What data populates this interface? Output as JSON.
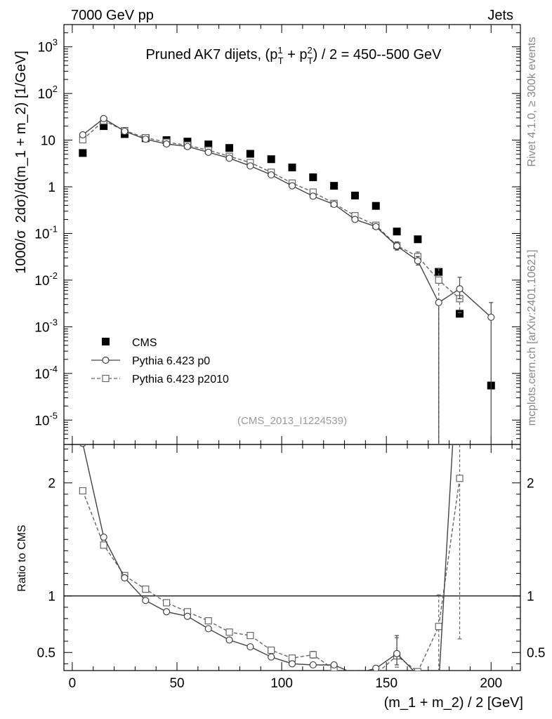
{
  "header": {
    "left": "7000 GeV pp",
    "right": "Jets"
  },
  "side_labels": {
    "rivet": "Rivet 4.1.0, ≥ 300k events",
    "mcplots": "mcplots.cern.ch [arXiv:2401.10621]"
  },
  "chart_data": [
    {
      "type": "scatter",
      "title": "Pruned AK7 dijets, (p_T^1 + p_T^2) / 2 = 450--500 GeV",
      "title_parts": {
        "prefix": "Pruned AK7 dijets, (p",
        "sup1": "1",
        "sub1": "T",
        "mid": " + p",
        "sup2": "2",
        "sub2": "T",
        "suffix": ") / 2 = 450--500 GeV"
      },
      "ylabel": "1000/σ  2dσ)/d(m_1 + m_2) [1/GeV]",
      "ylabel_parts": {
        "a": "1000/σ",
        "b": "2dσ)/d(m_1 + m_2) [1/GeV]"
      },
      "yscale": "log",
      "xlim": [
        -4,
        214
      ],
      "ylim": [
        3e-06,
        3000
      ],
      "ytick_labels": [
        {
          "exp": "-5"
        },
        {
          "exp": "-4"
        },
        {
          "exp": "-3"
        },
        {
          "exp": "-2"
        },
        {
          "exp": "-1"
        },
        {
          "text": "1"
        },
        {
          "text": "10"
        },
        {
          "exp": "2"
        },
        {
          "exp": "3"
        }
      ],
      "ytick_values": [
        1e-05,
        0.0001,
        0.001,
        0.01,
        0.1,
        1,
        10,
        100,
        1000
      ],
      "watermark": "(CMS_2013_I1224539)",
      "legend": {
        "placement": "bottom-left",
        "entries": [
          "CMS",
          "Pythia 6.423 p0",
          "Pythia 6.423 p2010"
        ]
      },
      "series": [
        {
          "name": "CMS",
          "style": "filled-square",
          "color": "#000000",
          "x": [
            5,
            15,
            25,
            35,
            45,
            55,
            65,
            75,
            85,
            95,
            105,
            115,
            125,
            135,
            145,
            155,
            165,
            175,
            185,
            200
          ],
          "y": [
            5.3,
            20,
            13.5,
            11,
            10,
            9.3,
            8.1,
            6.8,
            5.1,
            3.9,
            2.6,
            1.6,
            1.05,
            0.65,
            0.39,
            0.11,
            0.075,
            0.015,
            0.0019,
            5.5e-05
          ]
        },
        {
          "name": "Pythia 6.423 p0",
          "style": "open-circle-solid",
          "color": "#444444",
          "x": [
            5,
            15,
            25,
            35,
            45,
            55,
            65,
            75,
            85,
            95,
            105,
            115,
            125,
            135,
            145,
            155,
            165,
            175,
            185,
            200
          ],
          "y": [
            13,
            29,
            15.5,
            10.5,
            8.3,
            7.3,
            5.5,
            4.1,
            2.8,
            1.8,
            1.05,
            0.63,
            0.42,
            0.2,
            0.14,
            0.054,
            0.026,
            0.0033,
            0.0065,
            0.0016
          ],
          "err_up": [
            0,
            0,
            0,
            0,
            0,
            0,
            0,
            0,
            0,
            0,
            0,
            0,
            0,
            0,
            0,
            0.012,
            0.006,
            0,
            0.005,
            0.0017
          ],
          "err_down": [
            0,
            0,
            0,
            0,
            0,
            0,
            0,
            0,
            0,
            0,
            0,
            0,
            0,
            0,
            0,
            0.01,
            0.005,
            0.0033,
            0.0025,
            0.0016
          ]
        },
        {
          "name": "Pythia 6.423 p2010",
          "style": "open-square-dashed",
          "color": "#666666",
          "x": [
            5,
            15,
            25,
            35,
            45,
            55,
            65,
            75,
            85,
            95,
            105,
            115,
            125,
            135,
            145,
            155,
            165,
            175,
            185
          ],
          "y": [
            10.2,
            26,
            16,
            11.3,
            9,
            7.8,
            6.1,
            4.5,
            3.3,
            2.05,
            1.2,
            0.77,
            0.44,
            0.24,
            0.15,
            0.055,
            0.032,
            0.01,
            0.004
          ],
          "err_up": [
            0,
            0,
            0,
            0,
            0,
            0,
            0,
            0,
            0,
            0,
            0,
            0,
            0,
            0,
            0,
            0.01,
            0.008,
            0.008,
            0.003
          ],
          "err_down": [
            0,
            0,
            0,
            0,
            0,
            0,
            0,
            0,
            0,
            0,
            0,
            0,
            0,
            0,
            0,
            0.009,
            0.007,
            0.01,
            0.002
          ]
        }
      ]
    },
    {
      "type": "line",
      "ylabel": "Ratio to CMS",
      "xlabel": "(m_1 + m_2) / 2 [GeV]",
      "xlim": [
        -4,
        214
      ],
      "ylim": [
        0.34,
        2.34
      ],
      "xticks": [
        0,
        50,
        100,
        150,
        200
      ],
      "xtick_labels": [
        "0",
        "50",
        "100",
        "150",
        "200"
      ],
      "yticks": [
        0.5,
        1,
        2
      ],
      "ytick_labels": [
        "0.5",
        "1",
        "2"
      ],
      "reference_line": 1,
      "series": [
        {
          "name": "Pythia 6.423 p0",
          "style": "open-circle-solid",
          "color": "#444444",
          "x": [
            5,
            15,
            25,
            35,
            45,
            55,
            65,
            75,
            85,
            95,
            105,
            115,
            125,
            135,
            145,
            155,
            165,
            175,
            185
          ],
          "y": [
            2.35,
            1.52,
            1.16,
            0.96,
            0.86,
            0.82,
            0.71,
            0.61,
            0.55,
            0.46,
            0.4,
            0.39,
            0.39,
            0.31,
            0.36,
            0.49,
            0.3,
            0.22,
            3.4
          ],
          "err_up": [
            0,
            0,
            0,
            0,
            0,
            0,
            0,
            0,
            0.02,
            0.02,
            0,
            0,
            0,
            0,
            0,
            0.16,
            0,
            0,
            0
          ],
          "err_down": [
            0,
            0,
            0,
            0,
            0,
            0,
            0,
            0,
            0.02,
            0.02,
            0,
            0,
            0,
            0,
            0,
            0.1,
            0,
            0,
            0
          ]
        },
        {
          "name": "Pythia 6.423 p2010",
          "style": "open-square-dashed",
          "color": "#666666",
          "x": [
            5,
            15,
            25,
            35,
            45,
            55,
            65,
            75,
            85,
            95,
            105,
            115,
            125,
            135,
            145,
            155,
            165,
            175,
            185
          ],
          "y": [
            1.93,
            1.45,
            1.18,
            1.06,
            0.94,
            0.86,
            0.78,
            0.68,
            0.65,
            0.52,
            0.45,
            0.48,
            0.35,
            0.29,
            0.31,
            0.47,
            0.33,
            0.73,
            2.04
          ],
          "err_up": [
            0,
            0,
            0,
            0,
            0,
            0,
            0,
            0,
            0,
            0.02,
            0.02,
            0.03,
            0.03,
            0,
            0,
            0.16,
            0,
            0.28,
            0.56
          ],
          "err_down": [
            0,
            0,
            0,
            0,
            0,
            0,
            0,
            0,
            0,
            0.02,
            0.02,
            0.03,
            0.03,
            0,
            0,
            0.1,
            0,
            0.73,
            1.42
          ]
        }
      ]
    }
  ]
}
